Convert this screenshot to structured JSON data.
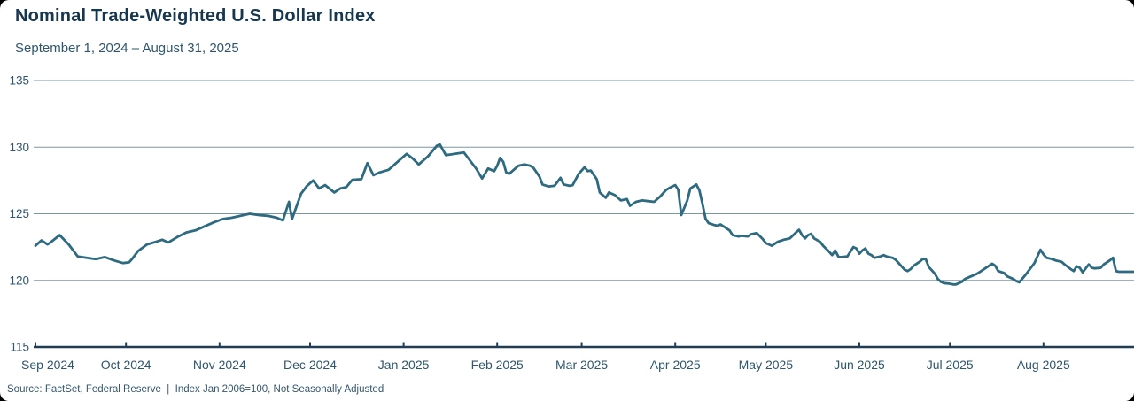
{
  "header": {
    "title": "Nominal Trade-Weighted U.S. Dollar Index",
    "subtitle": "September 1, 2024 – August 31, 2025"
  },
  "footer": {
    "source": "Source: FactSet, Federal Reserve  |  Index Jan 2006=100, Not Seasonally Adjusted"
  },
  "chart_data": {
    "type": "line",
    "title": "Nominal Trade-Weighted U.S. Dollar Index",
    "subtitle": "September 1, 2024 – August 31, 2025",
    "series_name": "Nominal Trade-Weighted U.S. Dollar Index",
    "ylim": [
      115,
      135
    ],
    "y_ticks": [
      135,
      130,
      125,
      120,
      115
    ],
    "x_ticks": [
      "Sep 2024",
      "Oct 2024",
      "Nov 2024",
      "Dec 2024",
      "Jan 2025",
      "Feb 2025",
      "Mar 2025",
      "Apr 2025",
      "May 2025",
      "Jun 2025",
      "Jul 2025",
      "Aug 2025"
    ],
    "x_range": [
      "2024-09-01",
      "2025-08-31"
    ],
    "grid": true,
    "legend": "none",
    "colors": {
      "line": "#2e6a80",
      "grid": "#7b97a6",
      "axis": "#1f3e56",
      "title": "#17374e",
      "label": "#2e566d"
    },
    "points": [
      [
        "2024-09-01",
        122.6
      ],
      [
        "2024-09-03",
        123.0
      ],
      [
        "2024-09-05",
        122.7
      ],
      [
        "2024-09-06",
        122.85
      ],
      [
        "2024-09-09",
        123.4
      ],
      [
        "2024-09-12",
        122.7
      ],
      [
        "2024-09-15",
        121.8
      ],
      [
        "2024-09-18",
        121.7
      ],
      [
        "2024-09-21",
        121.6
      ],
      [
        "2024-09-24",
        121.75
      ],
      [
        "2024-09-27",
        121.5
      ],
      [
        "2024-09-30",
        121.3
      ],
      [
        "2024-10-02",
        121.35
      ],
      [
        "2024-10-03",
        121.6
      ],
      [
        "2024-10-05",
        122.2
      ],
      [
        "2024-10-08",
        122.7
      ],
      [
        "2024-10-11",
        122.9
      ],
      [
        "2024-10-13",
        123.05
      ],
      [
        "2024-10-15",
        122.85
      ],
      [
        "2024-10-18",
        123.25
      ],
      [
        "2024-10-21",
        123.6
      ],
      [
        "2024-10-24",
        123.75
      ],
      [
        "2024-10-27",
        124.05
      ],
      [
        "2024-10-30",
        124.35
      ],
      [
        "2024-11-02",
        124.6
      ],
      [
        "2024-11-05",
        124.7
      ],
      [
        "2024-11-08",
        124.85
      ],
      [
        "2024-11-11",
        125.0
      ],
      [
        "2024-11-14",
        124.9
      ],
      [
        "2024-11-17",
        124.85
      ],
      [
        "2024-11-20",
        124.7
      ],
      [
        "2024-11-22",
        124.5
      ],
      [
        "2024-11-24",
        125.9
      ],
      [
        "2024-11-25",
        124.6
      ],
      [
        "2024-11-28",
        126.5
      ],
      [
        "2024-11-30",
        127.1
      ],
      [
        "2024-12-02",
        127.5
      ],
      [
        "2024-12-04",
        126.9
      ],
      [
        "2024-12-06",
        127.15
      ],
      [
        "2024-12-09",
        126.6
      ],
      [
        "2024-12-11",
        126.9
      ],
      [
        "2024-12-13",
        127.0
      ],
      [
        "2024-12-15",
        127.55
      ],
      [
        "2024-12-18",
        127.6
      ],
      [
        "2024-12-20",
        128.8
      ],
      [
        "2024-12-22",
        127.9
      ],
      [
        "2024-12-24",
        128.1
      ],
      [
        "2024-12-27",
        128.3
      ],
      [
        "2024-12-30",
        128.9
      ],
      [
        "2025-01-02",
        129.5
      ],
      [
        "2025-01-04",
        129.15
      ],
      [
        "2025-01-06",
        128.7
      ],
      [
        "2025-01-09",
        129.3
      ],
      [
        "2025-01-12",
        130.1
      ],
      [
        "2025-01-13",
        130.2
      ],
      [
        "2025-01-15",
        129.4
      ],
      [
        "2025-01-18",
        129.5
      ],
      [
        "2025-01-21",
        129.6
      ],
      [
        "2025-01-23",
        129.0
      ],
      [
        "2025-01-25",
        128.4
      ],
      [
        "2025-01-27",
        127.65
      ],
      [
        "2025-01-29",
        128.4
      ],
      [
        "2025-01-31",
        128.2
      ],
      [
        "2025-02-01",
        128.6
      ],
      [
        "2025-02-02",
        129.2
      ],
      [
        "2025-02-03",
        128.9
      ],
      [
        "2025-02-04",
        128.1
      ],
      [
        "2025-02-05",
        128.0
      ],
      [
        "2025-02-07",
        128.4
      ],
      [
        "2025-02-08",
        128.6
      ],
      [
        "2025-02-10",
        128.7
      ],
      [
        "2025-02-12",
        128.6
      ],
      [
        "2025-02-13",
        128.45
      ],
      [
        "2025-02-15",
        127.8
      ],
      [
        "2025-02-16",
        127.2
      ],
      [
        "2025-02-18",
        127.05
      ],
      [
        "2025-02-20",
        127.1
      ],
      [
        "2025-02-22",
        127.7
      ],
      [
        "2025-02-23",
        127.2
      ],
      [
        "2025-02-25",
        127.1
      ],
      [
        "2025-02-26",
        127.15
      ],
      [
        "2025-02-28",
        128.0
      ],
      [
        "2025-03-02",
        128.5
      ],
      [
        "2025-03-03",
        128.2
      ],
      [
        "2025-03-04",
        128.25
      ],
      [
        "2025-03-06",
        127.6
      ],
      [
        "2025-03-07",
        126.6
      ],
      [
        "2025-03-09",
        126.2
      ],
      [
        "2025-03-10",
        126.6
      ],
      [
        "2025-03-12",
        126.4
      ],
      [
        "2025-03-14",
        126.0
      ],
      [
        "2025-03-16",
        126.1
      ],
      [
        "2025-03-17",
        125.6
      ],
      [
        "2025-03-19",
        125.9
      ],
      [
        "2025-03-21",
        126.0
      ],
      [
        "2025-03-23",
        125.95
      ],
      [
        "2025-03-25",
        125.9
      ],
      [
        "2025-03-27",
        126.3
      ],
      [
        "2025-03-29",
        126.8
      ],
      [
        "2025-03-31",
        127.05
      ],
      [
        "2025-04-01",
        127.15
      ],
      [
        "2025-04-02",
        126.8
      ],
      [
        "2025-04-03",
        124.9
      ],
      [
        "2025-04-05",
        126.0
      ],
      [
        "2025-04-06",
        126.9
      ],
      [
        "2025-04-08",
        127.2
      ],
      [
        "2025-04-09",
        126.75
      ],
      [
        "2025-04-10",
        125.75
      ],
      [
        "2025-04-11",
        124.65
      ],
      [
        "2025-04-12",
        124.3
      ],
      [
        "2025-04-14",
        124.15
      ],
      [
        "2025-04-15",
        124.1
      ],
      [
        "2025-04-16",
        124.2
      ],
      [
        "2025-04-19",
        123.75
      ],
      [
        "2025-04-20",
        123.4
      ],
      [
        "2025-04-22",
        123.3
      ],
      [
        "2025-04-23",
        123.35
      ],
      [
        "2025-04-25",
        123.3
      ],
      [
        "2025-04-26",
        123.45
      ],
      [
        "2025-04-28",
        123.55
      ],
      [
        "2025-04-30",
        123.1
      ],
      [
        "2025-05-01",
        122.8
      ],
      [
        "2025-05-03",
        122.6
      ],
      [
        "2025-05-05",
        122.9
      ],
      [
        "2025-05-07",
        123.05
      ],
      [
        "2025-05-09",
        123.15
      ],
      [
        "2025-05-11",
        123.6
      ],
      [
        "2025-05-12",
        123.8
      ],
      [
        "2025-05-13",
        123.4
      ],
      [
        "2025-05-14",
        123.15
      ],
      [
        "2025-05-15",
        123.4
      ],
      [
        "2025-05-16",
        123.5
      ],
      [
        "2025-05-17",
        123.15
      ],
      [
        "2025-05-19",
        122.9
      ],
      [
        "2025-05-20",
        122.6
      ],
      [
        "2025-05-22",
        122.15
      ],
      [
        "2025-05-23",
        121.9
      ],
      [
        "2025-05-24",
        122.25
      ],
      [
        "2025-05-25",
        121.8
      ],
      [
        "2025-05-26",
        121.75
      ],
      [
        "2025-05-28",
        121.8
      ],
      [
        "2025-05-29",
        122.15
      ],
      [
        "2025-05-30",
        122.5
      ],
      [
        "2025-05-31",
        122.4
      ],
      [
        "2025-06-01",
        122.0
      ],
      [
        "2025-06-02",
        122.25
      ],
      [
        "2025-06-03",
        122.4
      ],
      [
        "2025-06-04",
        122.0
      ],
      [
        "2025-06-05",
        121.9
      ],
      [
        "2025-06-06",
        121.7
      ],
      [
        "2025-06-08",
        121.8
      ],
      [
        "2025-06-09",
        121.9
      ],
      [
        "2025-06-10",
        121.8
      ],
      [
        "2025-06-12",
        121.7
      ],
      [
        "2025-06-13",
        121.55
      ],
      [
        "2025-06-15",
        121.05
      ],
      [
        "2025-06-16",
        120.8
      ],
      [
        "2025-06-17",
        120.7
      ],
      [
        "2025-06-18",
        120.85
      ],
      [
        "2025-06-19",
        121.1
      ],
      [
        "2025-06-21",
        121.4
      ],
      [
        "2025-06-22",
        121.6
      ],
      [
        "2025-06-23",
        121.6
      ],
      [
        "2025-06-24",
        121.0
      ],
      [
        "2025-06-26",
        120.5
      ],
      [
        "2025-06-27",
        120.1
      ],
      [
        "2025-06-28",
        119.9
      ],
      [
        "2025-06-29",
        119.8
      ],
      [
        "2025-07-01",
        119.75
      ],
      [
        "2025-07-02",
        119.7
      ],
      [
        "2025-07-03",
        119.7
      ],
      [
        "2025-07-05",
        119.9
      ],
      [
        "2025-07-06",
        120.1
      ],
      [
        "2025-07-08",
        120.3
      ],
      [
        "2025-07-09",
        120.4
      ],
      [
        "2025-07-10",
        120.5
      ],
      [
        "2025-07-11",
        120.65
      ],
      [
        "2025-07-12",
        120.8
      ],
      [
        "2025-07-14",
        121.1
      ],
      [
        "2025-07-15",
        121.25
      ],
      [
        "2025-07-16",
        121.1
      ],
      [
        "2025-07-17",
        120.7
      ],
      [
        "2025-07-19",
        120.55
      ],
      [
        "2025-07-20",
        120.3
      ],
      [
        "2025-07-22",
        120.1
      ],
      [
        "2025-07-23",
        119.95
      ],
      [
        "2025-07-24",
        119.85
      ],
      [
        "2025-07-26",
        120.4
      ],
      [
        "2025-07-27",
        120.7
      ],
      [
        "2025-07-29",
        121.3
      ],
      [
        "2025-07-31",
        122.3
      ],
      [
        "2025-08-01",
        121.95
      ],
      [
        "2025-08-02",
        121.7
      ],
      [
        "2025-08-04",
        121.6
      ],
      [
        "2025-08-05",
        121.5
      ],
      [
        "2025-08-07",
        121.4
      ],
      [
        "2025-08-08",
        121.2
      ],
      [
        "2025-08-10",
        120.85
      ],
      [
        "2025-08-11",
        120.7
      ],
      [
        "2025-08-12",
        121.05
      ],
      [
        "2025-08-13",
        120.95
      ],
      [
        "2025-08-14",
        120.6
      ],
      [
        "2025-08-16",
        121.2
      ],
      [
        "2025-08-17",
        120.95
      ],
      [
        "2025-08-18",
        120.9
      ],
      [
        "2025-08-20",
        120.95
      ],
      [
        "2025-08-21",
        121.2
      ],
      [
        "2025-08-23",
        121.5
      ],
      [
        "2025-08-24",
        121.7
      ],
      [
        "2025-08-25",
        120.7
      ],
      [
        "2025-08-26",
        120.65
      ],
      [
        "2025-08-28",
        120.65
      ],
      [
        "2025-08-29",
        120.65
      ],
      [
        "2025-08-31",
        120.65
      ]
    ]
  }
}
